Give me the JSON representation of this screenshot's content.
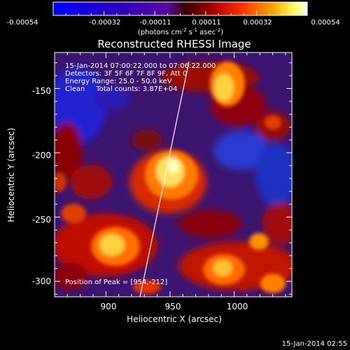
{
  "colorbar": {
    "ticks": [
      "-0.00054",
      "-0.00032",
      "-0.00011",
      "0.00011",
      "0.00032",
      "0.00054"
    ],
    "units_prefix": "(photons cm",
    "units_exp1": "-2",
    "units_mid": " s",
    "units_exp2": "-1",
    "units_mid2": " asec",
    "units_exp3": "-2",
    "units_suffix": ")"
  },
  "title": "Reconstructed RHESSI Image",
  "annotations": {
    "line1": "15-Jan-2014 07:00:22.000 to 07:06:22.000",
    "line2": "Detectors: 3F 5F 6F 7F 8F 9F, Att 0",
    "line3": "Energy Range: 25.0 - 50.0 keV",
    "line4": "Clean     Total counts: 3.87E+04",
    "peak": "Position of Peak = [954,-212]"
  },
  "axes": {
    "xlabel": "Heliocentric X (arcsec)",
    "ylabel": "Heliocentric Y (arcsec)",
    "xticks": [
      "900",
      "950",
      "1000"
    ],
    "yticks": [
      "-150",
      "-200",
      "-250",
      "-300"
    ],
    "xrange": [
      860,
      1045
    ],
    "yrange": [
      -312,
      -122
    ]
  },
  "timestamp": "15-Jan-2014 02:55",
  "colors": {
    "background": "#000000",
    "text": "#ffffff",
    "limb_line": "#ffffff"
  }
}
